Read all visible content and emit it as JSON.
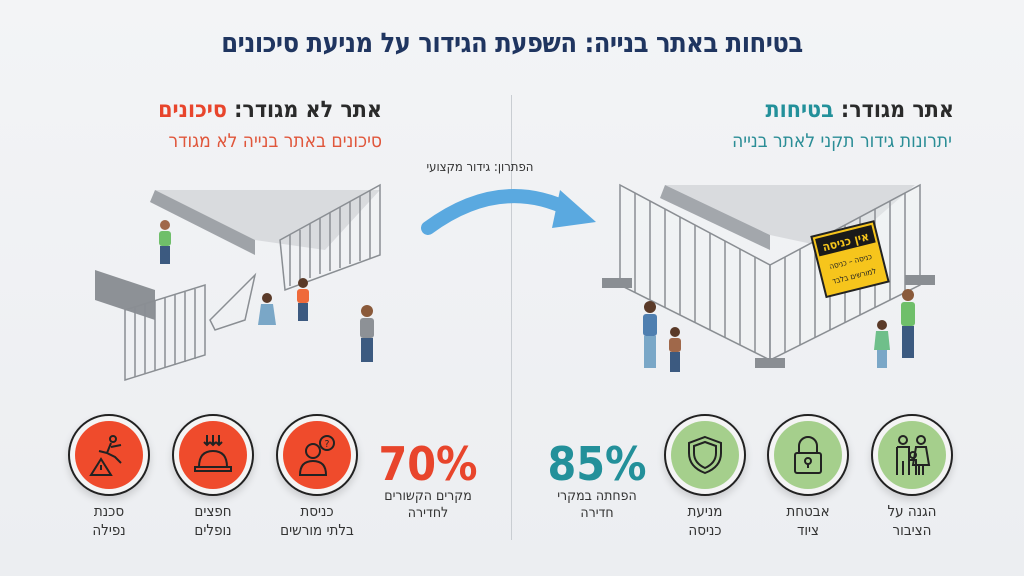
{
  "title": "בטיחות באתר בנייה: השפעת הגידור על מניעת סיכונים",
  "left": {
    "heading_prefix": "אתר לא מגודר: ",
    "heading_highlight": "סיכונים",
    "subtitle": "סיכונים באתר בנייה לא מגודר",
    "stat": {
      "value": "70%",
      "label_line1": "מקרים הקשורים",
      "label_line2": "לחדירה"
    },
    "icons": [
      {
        "icon": "question-person-icon",
        "line1": "כניסת",
        "line2": "בלתי מורשים"
      },
      {
        "icon": "falling-objects-helmet-icon",
        "line1": "חפצים",
        "line2": "נופלים"
      },
      {
        "icon": "falling-person-warning-icon",
        "line1": "סכנת",
        "line2": "נפילה"
      }
    ]
  },
  "right": {
    "heading_prefix": "אתר מגודר: ",
    "heading_highlight": "בטיחות",
    "subtitle": "יתרונות גידור תקני לאתר בנייה",
    "stat": {
      "value": "85%",
      "label_line1": "הפחתה במקרי",
      "label_line2": "חדירה"
    },
    "icons": [
      {
        "icon": "shield-icon",
        "line1": "מניעת",
        "line2": "כניסה"
      },
      {
        "icon": "padlock-icon",
        "line1": "אבטחת",
        "line2": "ציוד"
      },
      {
        "icon": "family-icon",
        "line1": "הגנה על",
        "line2": "הציבור"
      }
    ]
  },
  "solution": "הפתרון: גידור מקצועי",
  "sign": {
    "line1": "אין כניסה",
    "line2": "כניסה – כניסה",
    "line3": "למורשים בלבד"
  },
  "colors": {
    "navy": "#1f3560",
    "red": "#ef4b2c",
    "teal": "#23909a",
    "green": "#a5cf8c",
    "arrow": "#5aa9e0"
  }
}
